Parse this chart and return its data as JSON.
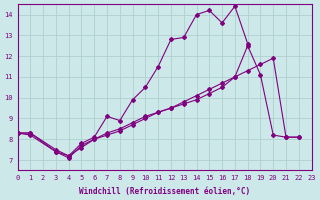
{
  "xlabel": "Windchill (Refroidissement éolien,°C)",
  "background_color": "#cce8e8",
  "line_color": "#800080",
  "grid_color": "#aacccc",
  "xlim": [
    0,
    23
  ],
  "ylim": [
    6.5,
    14.5
  ],
  "yticks": [
    7,
    8,
    9,
    10,
    11,
    12,
    13,
    14
  ],
  "xticks": [
    0,
    1,
    2,
    3,
    4,
    5,
    6,
    7,
    8,
    9,
    10,
    11,
    12,
    13,
    14,
    15,
    16,
    17,
    18,
    19,
    20,
    21,
    22,
    23
  ],
  "series": [
    {
      "x": [
        0,
        1,
        3,
        4,
        5,
        6,
        7,
        8,
        9,
        10,
        11,
        12,
        13,
        14,
        15,
        16,
        17,
        18,
        19,
        20,
        21,
        22
      ],
      "y": [
        8.3,
        8.2,
        7.4,
        7.1,
        7.7,
        8.0,
        8.3,
        8.5,
        8.8,
        9.1,
        9.3,
        9.5,
        9.7,
        9.9,
        10.2,
        10.5,
        11.0,
        12.5,
        11.1,
        8.2,
        8.1,
        8.1
      ]
    },
    {
      "x": [
        0,
        1,
        3,
        4,
        5,
        6,
        7,
        8,
        9,
        10,
        11,
        12,
        13,
        14,
        15,
        16,
        17,
        18,
        19,
        20,
        21,
        22
      ],
      "y": [
        8.3,
        8.3,
        7.4,
        7.2,
        7.6,
        8.0,
        8.2,
        8.4,
        8.7,
        9.0,
        9.3,
        9.5,
        9.8,
        10.1,
        10.4,
        10.7,
        11.0,
        11.3,
        11.6,
        11.9,
        8.1,
        8.1
      ]
    },
    {
      "x": [
        0,
        1,
        3,
        4,
        5,
        6,
        7,
        8,
        9,
        10,
        11,
        12,
        13,
        14,
        15,
        16,
        17,
        18
      ],
      "y": [
        8.3,
        8.3,
        7.5,
        7.2,
        7.8,
        8.1,
        9.1,
        8.9,
        9.9,
        10.5,
        11.5,
        12.8,
        12.9,
        14.0,
        14.2,
        13.6,
        14.4,
        12.6
      ]
    }
  ]
}
